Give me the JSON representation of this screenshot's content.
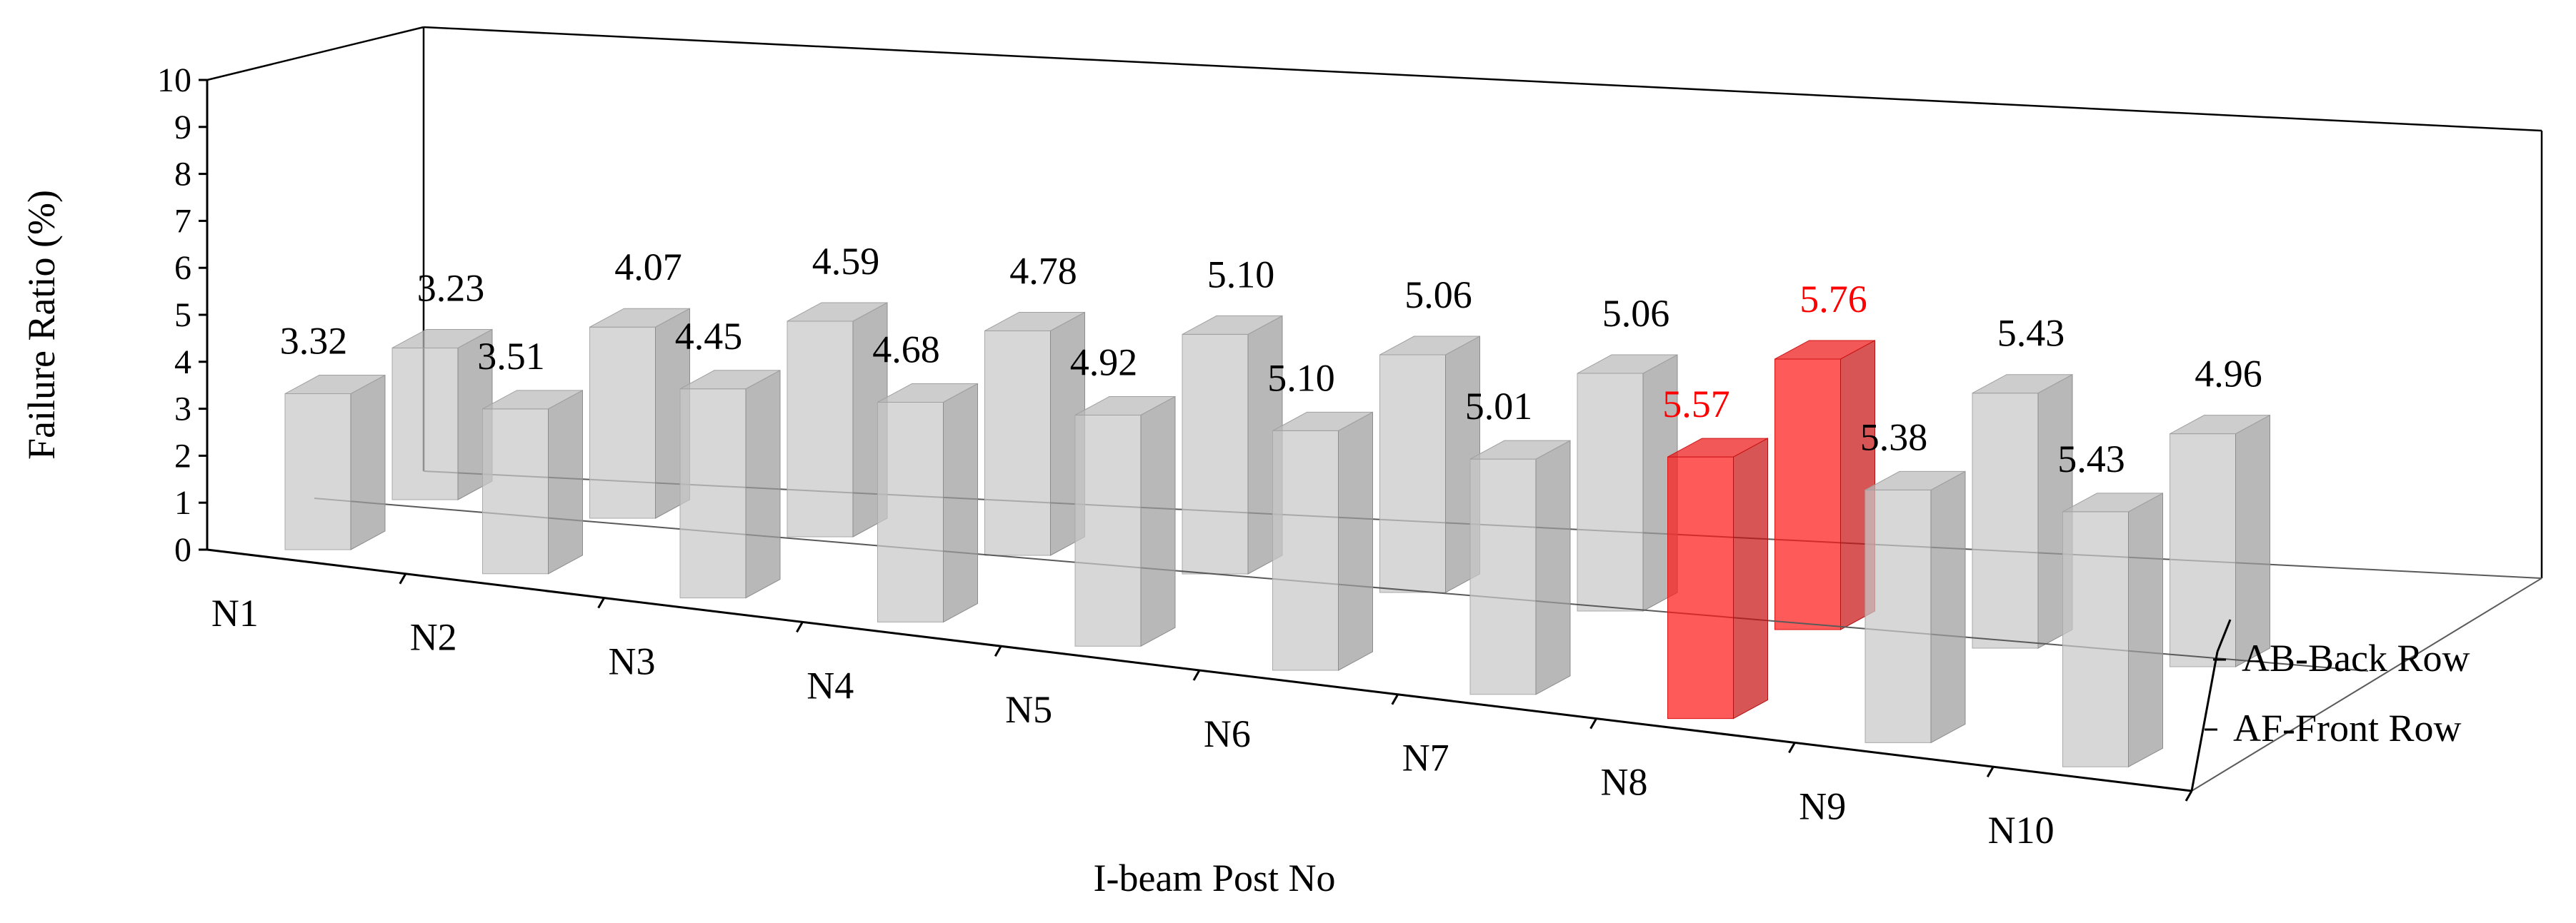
{
  "chart_data": {
    "type": "bar",
    "subtype": "3d-column",
    "xlabel": "I-beam Post No",
    "ylabel": "Failure Ratio (%)",
    "ylim": [
      0,
      10
    ],
    "yticks": [
      "0",
      "1",
      "2",
      "3",
      "4",
      "5",
      "6",
      "7",
      "8",
      "9",
      "10"
    ],
    "categories": [
      "N1",
      "N2",
      "N3",
      "N4",
      "N5",
      "N6",
      "N7",
      "N8",
      "N9",
      "N10"
    ],
    "depth_categories": [
      "AB-Back Row",
      "AF-Front Row"
    ],
    "series": [
      {
        "name": "AF-Front Row",
        "values": [
          3.32,
          3.51,
          4.45,
          4.68,
          4.92,
          5.1,
          5.01,
          5.57,
          5.38,
          5.43
        ],
        "labels": [
          "3.32",
          "3.51",
          "4.45",
          "4.68",
          "4.92",
          "5.10",
          "5.01",
          "5.57",
          "5.38",
          "5.43"
        ]
      },
      {
        "name": "AB-Back Row",
        "values": [
          3.23,
          4.07,
          4.59,
          4.78,
          5.1,
          5.06,
          5.06,
          5.76,
          5.43,
          4.96
        ],
        "labels": [
          "3.23",
          "4.07",
          "4.59",
          "4.78",
          "5.10",
          "5.06",
          "5.06",
          "5.76",
          "5.43",
          "4.96"
        ]
      }
    ],
    "highlight_category": "N8",
    "colors": {
      "bar": "#c8c8c8",
      "highlight": "#ff1a1a",
      "highlight_label": "#ff0000",
      "label": "#000000"
    },
    "grid": false,
    "legend": "none"
  }
}
